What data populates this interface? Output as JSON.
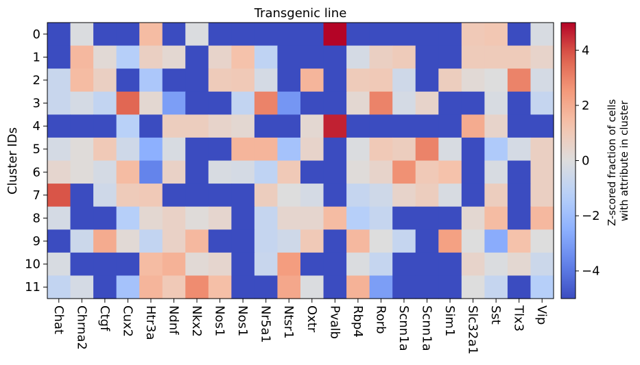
{
  "chart_data": {
    "type": "heatmap",
    "title": "Transgenic line",
    "xlabel": "",
    "ylabel": "Cluster IDs",
    "x_categories": [
      "Chat",
      "Chrna2",
      "Ctgf",
      "Cux2",
      "Htr3a",
      "Ndnf",
      "Nkx2",
      "Nos1",
      "Nos1",
      "Nr5a1",
      "Ntsr1",
      "Oxtr",
      "Pvalb",
      "Rbp4",
      "Rorb",
      "Scnn1a",
      "Scnn1a",
      "Sim1",
      "Slc32a1",
      "Sst",
      "Tlx3",
      "Vip"
    ],
    "y_categories": [
      "0",
      "1",
      "2",
      "3",
      "4",
      "5",
      "6",
      "7",
      "8",
      "9",
      "10",
      "11"
    ],
    "values": [
      [
        -5,
        -0.1,
        -5,
        -5,
        1.5,
        -5,
        -0.1,
        -5,
        -5,
        -5,
        -5,
        -5,
        5,
        -5,
        -5,
        -5,
        -5,
        -5,
        1,
        1.1,
        -5,
        -0.2
      ],
      [
        -5,
        1.6,
        0.2,
        -1.3,
        0.7,
        0.3,
        -5,
        0.5,
        1.3,
        -1,
        -5,
        -5,
        -5,
        -0.3,
        0.7,
        0.9,
        -5,
        -5,
        0.9,
        0.9,
        0.9,
        0.5
      ],
      [
        -0.7,
        1.5,
        0.7,
        -5,
        -1.6,
        -5,
        -5,
        0.9,
        1,
        -0.3,
        -5,
        1.7,
        -5,
        0.9,
        1,
        -0.5,
        -5,
        0.8,
        0.2,
        0,
        3,
        -0.3
      ],
      [
        -0.7,
        -0.3,
        -0.9,
        3.6,
        0.3,
        -3,
        -5,
        -5,
        -0.9,
        3,
        -3.2,
        -5,
        -5,
        0.3,
        3,
        -0.3,
        0.5,
        -5,
        -5,
        -0.2,
        -5,
        -0.8
      ],
      [
        -5,
        -5,
        -5,
        -1.2,
        -5,
        0.8,
        0.8,
        0.5,
        0.3,
        -5,
        -5,
        0.3,
        4.6,
        -5,
        -5,
        -5,
        -5,
        -5,
        2,
        0.5,
        -5,
        -5
      ],
      [
        -0.3,
        0.1,
        1,
        -0.5,
        -2.5,
        -0.2,
        -5,
        -5,
        1.7,
        1.7,
        -1.8,
        0.5,
        -5,
        -0.1,
        1,
        0.8,
        3,
        -0.2,
        -5,
        -1.5,
        -0.3,
        0.7
      ],
      [
        0.4,
        0.1,
        -0.3,
        1.5,
        -3.7,
        0.6,
        -5,
        -0.2,
        -0.3,
        -1,
        1,
        -5,
        -5,
        0.1,
        0.5,
        2.7,
        1,
        1.3,
        -5,
        -0.2,
        -5,
        0.7
      ],
      [
        3.9,
        -5,
        -0.5,
        0.9,
        1,
        -5,
        -5,
        -5,
        -5,
        0.8,
        0,
        -0.3,
        -5,
        -0.8,
        -0.5,
        0.5,
        0.8,
        -0.2,
        -5,
        0.8,
        -5,
        0.7
      ],
      [
        -0.3,
        -5,
        -5,
        -1.3,
        0.3,
        0.6,
        0.1,
        0.4,
        -5,
        -0.8,
        0.4,
        0.4,
        1.5,
        -1.3,
        -0.8,
        -5,
        -5,
        -5,
        0.3,
        1.5,
        -5,
        1.6
      ],
      [
        -5,
        -0.6,
        2,
        0.2,
        -0.9,
        0.6,
        1.6,
        -5,
        -5,
        -0.8,
        -0.5,
        1,
        -5,
        1.6,
        0,
        -0.8,
        -5,
        2.3,
        0,
        -2.6,
        1.3,
        0
      ],
      [
        -0.2,
        -5,
        -5,
        -5,
        1.5,
        1.8,
        0.2,
        0.4,
        -5,
        -0.7,
        2.4,
        -5,
        -5,
        -0.1,
        -0.8,
        -5,
        -5,
        -5,
        0.5,
        -0.1,
        0.3,
        -0.6
      ],
      [
        -0.9,
        -0.3,
        -5,
        -1.8,
        1.7,
        1,
        2.8,
        1.4,
        -5,
        -5,
        2.1,
        -0.1,
        -5,
        1.8,
        -3,
        -5,
        -5,
        -5,
        0,
        -0.8,
        -5,
        -1.3
      ]
    ],
    "colormap": "coolwarm",
    "vmin": -5,
    "vmax": 5,
    "colorbar": {
      "label": "Z-scored fraction of cells\nwith attribute in cluster",
      "ticks": [
        -4,
        -2,
        0,
        2,
        4
      ],
      "tick_labels": [
        "−4",
        "−2",
        "0",
        "2",
        "4"
      ]
    }
  }
}
